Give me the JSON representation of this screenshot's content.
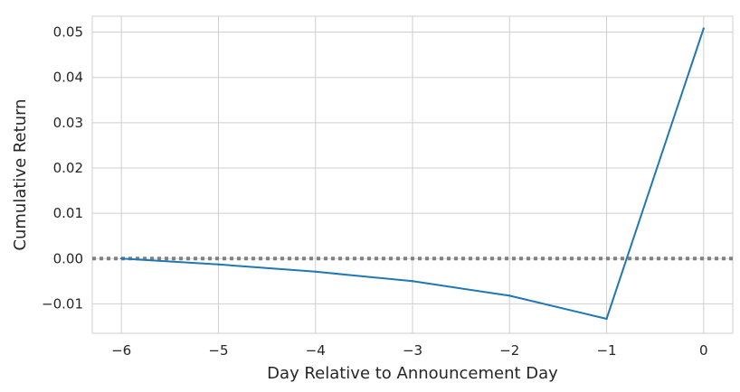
{
  "chart_data": {
    "type": "line",
    "title": "",
    "xlabel": "Day Relative to Announcement Day",
    "ylabel": "Cumulative Return",
    "xlim": [
      -6.3,
      0.3
    ],
    "ylim": [
      -0.0165,
      0.0535
    ],
    "x_ticks": [
      -6,
      -5,
      -4,
      -3,
      -2,
      -1,
      0
    ],
    "x_tick_labels": [
      "−6",
      "−5",
      "−4",
      "−3",
      "−2",
      "−1",
      "0"
    ],
    "y_ticks": [
      -0.01,
      0.0,
      0.01,
      0.02,
      0.03,
      0.04,
      0.05
    ],
    "y_tick_labels": [
      "−0.01",
      "0.00",
      "0.01",
      "0.02",
      "0.03",
      "0.04",
      "0.05"
    ],
    "grid": true,
    "legend": "none",
    "series": [
      {
        "x": [
          -6,
          -5,
          -4,
          -3,
          -2,
          -1,
          0
        ],
        "values": [
          0.0,
          -0.0013,
          -0.0029,
          -0.005,
          -0.0082,
          -0.0133,
          0.0508
        ],
        "color": "#1f77b4"
      }
    ],
    "reference_line": {
      "y": 0.0,
      "style": "dotted",
      "color": "#808080"
    }
  }
}
